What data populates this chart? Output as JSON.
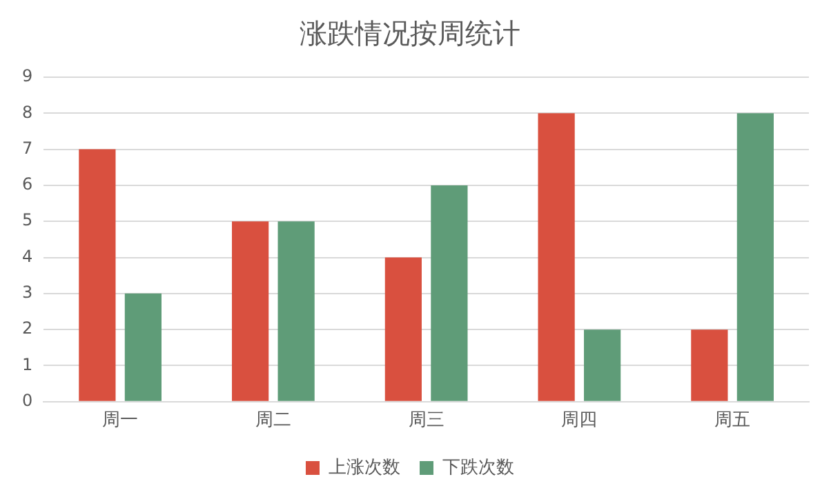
{
  "chart_data": {
    "type": "bar",
    "title": "涨跌情况按周统计",
    "categories": [
      "周一",
      "周二",
      "周三",
      "周四",
      "周五"
    ],
    "series": [
      {
        "name": "上涨次数",
        "color": "#d9503f",
        "values": [
          7,
          5,
          4,
          8,
          2
        ]
      },
      {
        "name": "下跌次数",
        "color": "#5f9c78",
        "values": [
          3,
          5,
          6,
          2,
          8
        ]
      }
    ],
    "ylim": [
      0,
      9
    ],
    "yticks": [
      0,
      1,
      2,
      3,
      4,
      5,
      6,
      7,
      8,
      9
    ],
    "grid": "y",
    "legend": "bottom"
  }
}
